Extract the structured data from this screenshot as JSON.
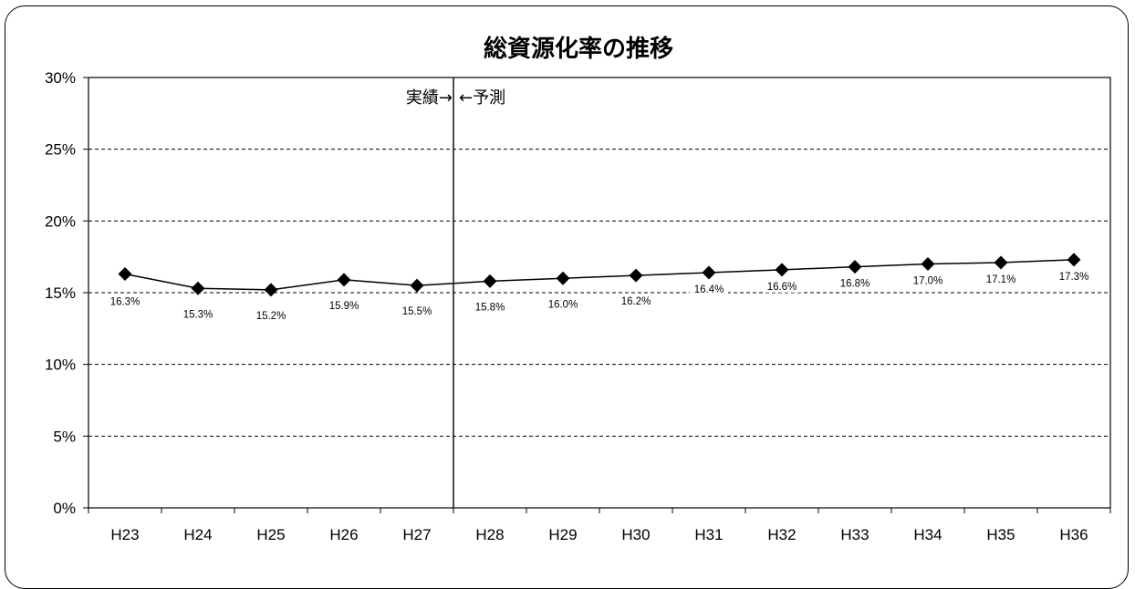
{
  "chart_data": {
    "type": "line",
    "title": "総資源化率の推移",
    "categories": [
      "H23",
      "H24",
      "H25",
      "H26",
      "H27",
      "H28",
      "H29",
      "H30",
      "H31",
      "H32",
      "H33",
      "H34",
      "H35",
      "H36"
    ],
    "values": [
      16.3,
      15.3,
      15.2,
      15.9,
      15.5,
      15.8,
      16.0,
      16.2,
      16.4,
      16.6,
      16.8,
      17.0,
      17.1,
      17.3
    ],
    "data_labels": [
      "16.3%",
      "15.3%",
      "15.2%",
      "15.9%",
      "15.5%",
      "15.8%",
      "16.0%",
      "16.2%",
      "16.4%",
      "16.6%",
      "16.8%",
      "17.0%",
      "17.1%",
      "17.3%"
    ],
    "ylim": [
      0,
      30
    ],
    "yticks": [
      0,
      5,
      10,
      15,
      20,
      25,
      30
    ],
    "ytick_labels": [
      "0%",
      "5%",
      "10%",
      "15%",
      "20%",
      "25%",
      "30%"
    ],
    "grid": "dashed-horizontal",
    "marker": "diamond",
    "line_color": "#000000",
    "divider": {
      "after_category": "H27",
      "left_text": "実績→",
      "right_text": "←予測"
    }
  }
}
